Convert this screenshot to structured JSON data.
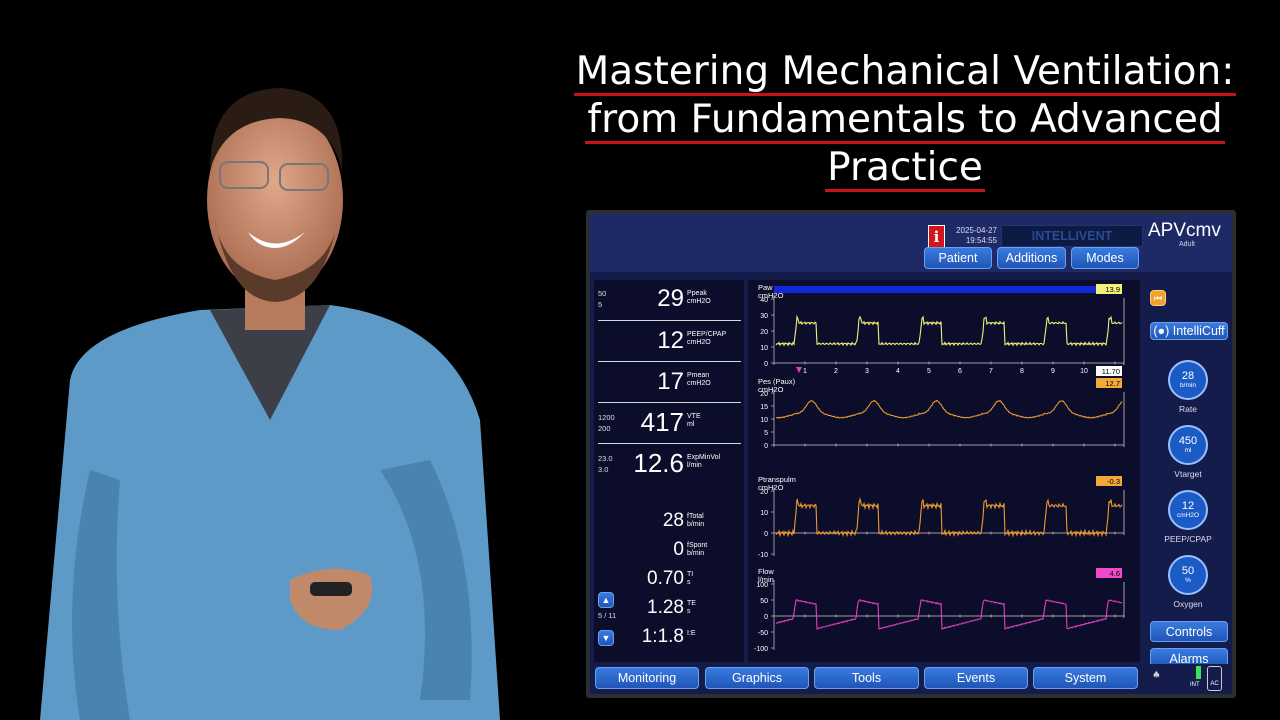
{
  "title": {
    "line1": "Mastering Mechanical Ventilation:",
    "line2": "from Fundamentals to Advanced",
    "line3": "Practice"
  },
  "ventilator": {
    "date": "2025-04-27",
    "time": "19:54:55",
    "mode": "APVcmv",
    "mode_sub": "Adult",
    "intellivent_label": "INTELLIVENT",
    "top_buttons": [
      "Patient",
      "Additions",
      "Modes"
    ],
    "params": {
      "ppeak": {
        "limit_high": "50",
        "limit_low": "5",
        "value": "29",
        "label": "Ppeak",
        "unit": "cmH2O"
      },
      "peep": {
        "value": "12",
        "label": "PEEP/CPAP",
        "unit": "cmH2O"
      },
      "pmean": {
        "value": "17",
        "label": "Pmean",
        "unit": "cmH2O"
      },
      "vte": {
        "limit_high": "1200",
        "limit_low": "200",
        "value": "417",
        "label": "VTE",
        "unit": "ml"
      },
      "expminvol": {
        "limit_high": "23.0",
        "limit_low": "3.0",
        "value": "12.6",
        "label": "ExpMinVol",
        "unit": "l/min"
      },
      "ftotal": {
        "value": "28",
        "label": "fTotal",
        "unit": "b/min"
      },
      "fspont": {
        "value": "0",
        "label": "fSpont",
        "unit": "b/min"
      },
      "ti": {
        "value": "0.70",
        "label": "TI",
        "unit": "s"
      },
      "te": {
        "value": "1.28",
        "label": "TE",
        "unit": "s"
      },
      "ie": {
        "value": "1:1.8",
        "label": "I:E",
        "unit": ""
      },
      "page": "5 / 11"
    },
    "waveforms": {
      "paw": {
        "name": "Paw",
        "unit": "cmH2O",
        "badge": "13.9",
        "badge_color": "#f2f07a",
        "color": "#f0f07a",
        "ticks": [
          "40",
          "30",
          "20",
          "10",
          "0"
        ],
        "time_ticks": [
          "1",
          "2",
          "3",
          "4",
          "5",
          "6",
          "7",
          "8",
          "9",
          "10"
        ],
        "time_badge": "11.70"
      },
      "pes": {
        "name": "Pes (Paux)",
        "unit": "cmH2O",
        "badge": "12.7",
        "badge_color": "#f2a83a",
        "color": "#e89a30",
        "ticks": [
          "20",
          "15",
          "10",
          "5",
          "0"
        ]
      },
      "ptrans": {
        "name": "Ptranspulm",
        "unit": "cmH2O",
        "badge": "-0.3",
        "badge_color": "#f2a83a",
        "color": "#f09a2e",
        "ticks": [
          "20",
          "10",
          "0",
          "-10"
        ]
      },
      "flow": {
        "name": "Flow",
        "unit": "l/min",
        "badge": "4.6",
        "badge_color": "#f04ac8",
        "color": "#e83fc0",
        "ticks": [
          "100",
          "50",
          "0",
          "-50",
          "-100"
        ]
      }
    },
    "right": {
      "intellicuff": "IntelliCuff",
      "knobs": [
        {
          "value": "28",
          "unit": "b/min",
          "label": "Rate"
        },
        {
          "value": "450",
          "unit": "ml",
          "label": "Vtarget"
        },
        {
          "value": "12",
          "unit": "cmH2O",
          "label": "PEEP/CPAP"
        },
        {
          "value": "50",
          "unit": "%",
          "label": "Oxygen"
        }
      ],
      "controls": "Controls",
      "alarms": "Alarms",
      "int_label": "INT",
      "ac_label": "AC"
    },
    "bottom_tabs": [
      "Monitoring",
      "Graphics",
      "Tools",
      "Events",
      "System"
    ]
  }
}
